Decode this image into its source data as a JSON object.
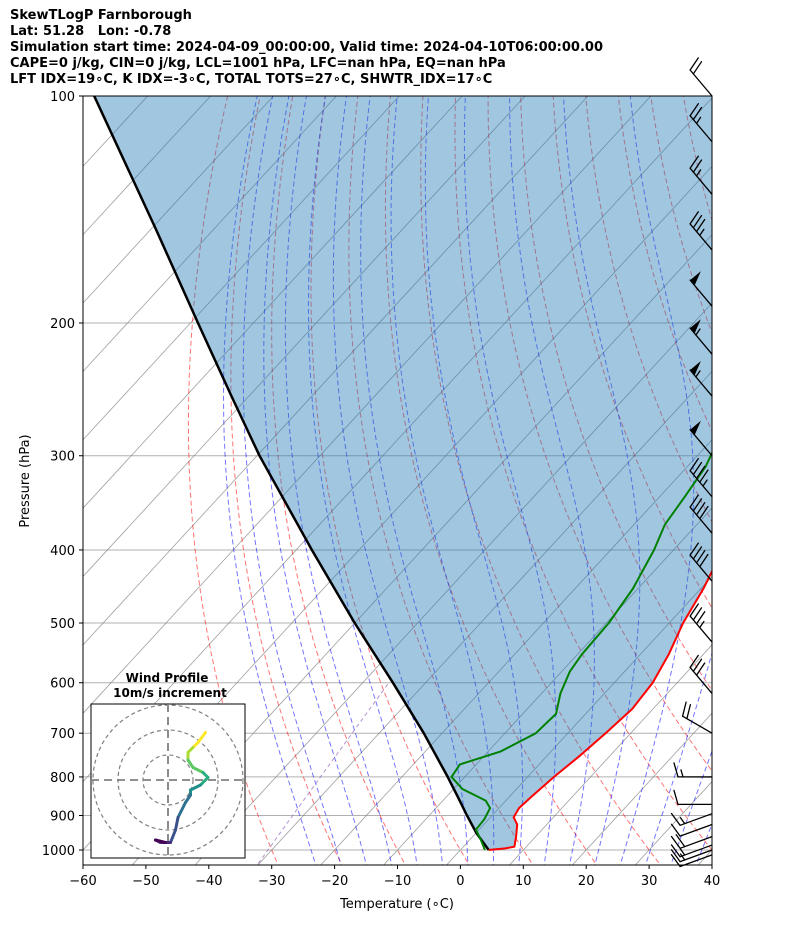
{
  "header": {
    "line1": "SkewTLogP Farnborough",
    "line2": "Lat: 51.28   Lon: -0.78",
    "line3": "Simulation start time: 2024-04-09_00:00:00, Valid time: 2024-04-10T06:00:00.00",
    "line4": "CAPE=0 j/kg, CIN=0 j/kg, LCL=1001 hPa, LFC=nan hPa, EQ=nan hPa",
    "line5": "LFT IDX=19∘C, K IDX=-3∘C, TOTAL TOTS=27∘C, SHWTR_IDX=17∘C"
  },
  "colors": {
    "temperature": "#ff0000",
    "dewpoint": "#008000",
    "parcel": "#000000",
    "cape_fill": "#1f77b4",
    "dry_adiabats": "#ff0000",
    "moist_adiabats": "#0000ff",
    "mixing_ratio": "#9467bd",
    "isotherms": "#808080",
    "barbs": "#000000"
  },
  "chart_data": {
    "type": "skewt",
    "xlabel": "Temperature (∘C)",
    "ylabel": "Pressure (hPa)",
    "xlim": [
      -60,
      40
    ],
    "ylim": [
      1050,
      100
    ],
    "x_ticks": [
      "−60",
      "−50",
      "−40",
      "−30",
      "−20",
      "−10",
      "0",
      "10",
      "20",
      "30",
      "40"
    ],
    "x_tick_values": [
      -60,
      -50,
      -40,
      -30,
      -20,
      -10,
      0,
      10,
      20,
      30,
      40
    ],
    "y_ticks": [
      1000,
      900,
      800,
      700,
      600,
      500,
      400,
      300,
      200,
      100
    ],
    "grid": true,
    "temperature_profile": [
      [
        1000,
        4.5
      ],
      [
        995,
        6.9
      ],
      [
        990,
        8.1
      ],
      [
        960,
        6.9
      ],
      [
        925,
        5.3
      ],
      [
        905,
        3.7
      ],
      [
        880,
        3.2
      ],
      [
        850,
        3.5
      ],
      [
        800,
        4.2
      ],
      [
        750,
        5.2
      ],
      [
        700,
        6.0
      ],
      [
        650,
        6.7
      ],
      [
        600,
        6.1
      ],
      [
        550,
        4.5
      ],
      [
        500,
        2.2
      ],
      [
        450,
        0.4
      ],
      [
        400,
        -2.2
      ],
      [
        360,
        -4.8
      ],
      [
        330,
        -6.6
      ],
      [
        300,
        -6.8
      ],
      [
        270,
        -7.5
      ],
      [
        240,
        -8.6
      ],
      [
        230,
        -9.3
      ],
      [
        220,
        -8.8
      ],
      [
        210,
        -7.8
      ],
      [
        200,
        -6.7
      ],
      [
        185,
        -5.5
      ],
      [
        170,
        -4.5
      ],
      [
        150,
        -3.2
      ],
      [
        130,
        -1.9
      ],
      [
        115,
        -0.5
      ],
      [
        100,
        1.5
      ]
    ],
    "dewpoint_profile": [
      [
        1000,
        3.9
      ],
      [
        970,
        1.8
      ],
      [
        940,
        -0.5
      ],
      [
        910,
        -0.7
      ],
      [
        880,
        -1.4
      ],
      [
        860,
        -3.2
      ],
      [
        830,
        -8.6
      ],
      [
        800,
        -12.1
      ],
      [
        770,
        -12.6
      ],
      [
        740,
        -8.0
      ],
      [
        700,
        -5.1
      ],
      [
        660,
        -4.7
      ],
      [
        620,
        -7.0
      ],
      [
        580,
        -8.7
      ],
      [
        550,
        -9.3
      ],
      [
        500,
        -9.6
      ],
      [
        450,
        -10.8
      ],
      [
        400,
        -13.1
      ],
      [
        370,
        -15.1
      ],
      [
        340,
        -16.0
      ],
      [
        310,
        -17.1
      ],
      [
        280,
        -19.5
      ],
      [
        260,
        -18.9
      ],
      [
        240,
        -19.6
      ],
      [
        220,
        -20.1
      ],
      [
        200,
        -19.6
      ],
      [
        185,
        -20.8
      ],
      [
        170,
        -22.2
      ],
      [
        158,
        -23.3
      ],
      [
        150,
        -22.9
      ],
      [
        135,
        -21.9
      ],
      [
        115,
        -21.1
      ],
      [
        100,
        -19.6
      ]
    ],
    "parcel_profile": [
      [
        1000,
        4.5
      ],
      [
        950,
        0.1
      ],
      [
        900,
        -4.0
      ],
      [
        850,
        -8.2
      ],
      [
        800,
        -12.7
      ],
      [
        700,
        -22.9
      ],
      [
        600,
        -35.2
      ],
      [
        500,
        -50.0
      ],
      [
        400,
        -67.5
      ],
      [
        300,
        -89.6
      ],
      [
        250,
        -102.8
      ],
      [
        200,
        -118.8
      ],
      [
        150,
        -139.3
      ],
      [
        100,
        -168.5
      ]
    ],
    "wind_barbs": [
      {
        "p": 1015,
        "speed_kt": 10,
        "dir_deg": 250
      },
      {
        "p": 1000,
        "speed_kt": 15,
        "dir_deg": 250
      },
      {
        "p": 985,
        "speed_kt": 15,
        "dir_deg": 250
      },
      {
        "p": 960,
        "speed_kt": 20,
        "dir_deg": 250
      },
      {
        "p": 925,
        "speed_kt": 10,
        "dir_deg": 250
      },
      {
        "p": 895,
        "speed_kt": 15,
        "dir_deg": 250
      },
      {
        "p": 870,
        "speed_kt": 10,
        "dir_deg": 270
      },
      {
        "p": 800,
        "speed_kt": 15,
        "dir_deg": 270
      },
      {
        "p": 700,
        "speed_kt": 20,
        "dir_deg": 300
      },
      {
        "p": 620,
        "speed_kt": 30,
        "dir_deg": 320
      },
      {
        "p": 530,
        "speed_kt": 35,
        "dir_deg": 320
      },
      {
        "p": 440,
        "speed_kt": 40,
        "dir_deg": 320
      },
      {
        "p": 380,
        "speed_kt": 40,
        "dir_deg": 320
      },
      {
        "p": 340,
        "speed_kt": 45,
        "dir_deg": 320
      },
      {
        "p": 300,
        "speed_kt": 50,
        "dir_deg": 320
      },
      {
        "p": 250,
        "speed_kt": 55,
        "dir_deg": 320
      },
      {
        "p": 220,
        "speed_kt": 55,
        "dir_deg": 320
      },
      {
        "p": 190,
        "speed_kt": 50,
        "dir_deg": 320
      },
      {
        "p": 160,
        "speed_kt": 35,
        "dir_deg": 320
      },
      {
        "p": 135,
        "speed_kt": 25,
        "dir_deg": 320
      },
      {
        "p": 115,
        "speed_kt": 25,
        "dir_deg": 320
      },
      {
        "p": 100,
        "speed_kt": 20,
        "dir_deg": 320
      }
    ],
    "hodograph": {
      "title_line1": "Wind Profile",
      "title_line2": "10m/s increment",
      "ring_step_ms": 10,
      "points_ms": [
        [
          15,
          -19
        ],
        [
          12,
          -15
        ],
        [
          10,
          -13
        ],
        [
          8,
          -11
        ],
        [
          8,
          -8
        ],
        [
          10,
          -5
        ],
        [
          14,
          -3
        ],
        [
          16,
          -1
        ],
        [
          13,
          2
        ],
        [
          9,
          4
        ],
        [
          9,
          6
        ],
        [
          7,
          9
        ],
        [
          4,
          15
        ],
        [
          3,
          20
        ],
        [
          1,
          25
        ],
        [
          -3,
          25
        ],
        [
          -5,
          24
        ],
        [
          -1,
          25
        ]
      ]
    }
  }
}
